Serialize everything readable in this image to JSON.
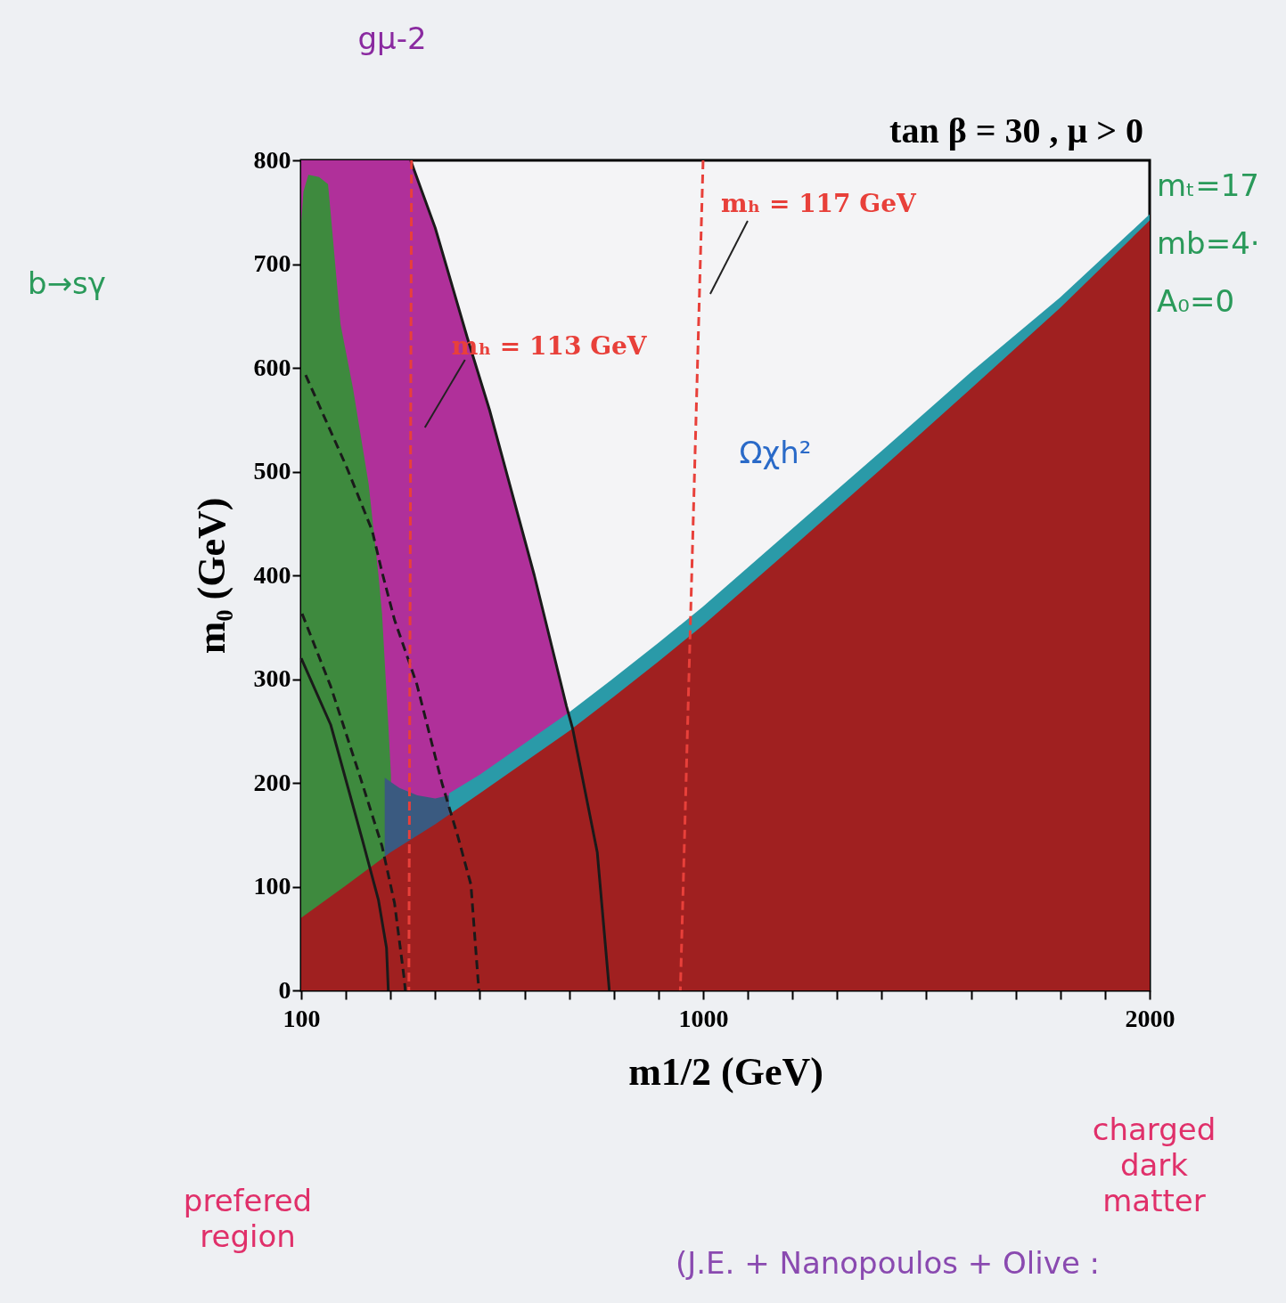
{
  "chart_data": {
    "type": "area",
    "title": "tan β = 30 ,  μ > 0",
    "xlabel": "m1/2 (GeV)",
    "ylabel": "m₀ (GeV)",
    "xlim": [
      100,
      2000
    ],
    "ylim": [
      0,
      800
    ],
    "xticks": [
      100,
      {
        "value": 200,
        "label": null
      },
      {
        "value": 300,
        "label": null
      },
      {
        "value": 400,
        "label": null
      },
      {
        "value": 500,
        "label": null
      },
      {
        "value": 600,
        "label": null
      },
      {
        "value": 700,
        "label": null
      },
      {
        "value": 800,
        "label": null
      },
      {
        "value": 900,
        "label": null
      },
      1000,
      {
        "value": 1100,
        "label": null
      },
      {
        "value": 1200,
        "label": null
      },
      {
        "value": 1300,
        "label": null
      },
      {
        "value": 1400,
        "label": null
      },
      {
        "value": 1500,
        "label": null
      },
      {
        "value": 1600,
        "label": null
      },
      {
        "value": 1700,
        "label": null
      },
      {
        "value": 1800,
        "label": null
      },
      {
        "value": 1900,
        "label": null
      },
      2000
    ],
    "yticks": [
      0,
      100,
      200,
      300,
      400,
      500,
      600,
      700,
      800
    ],
    "series": [
      {
        "color": "#b0309a",
        "x": [
          100,
          200,
          300,
          345,
          400,
          472,
          522,
          622,
          694,
          700
        ],
        "values": [
          800,
          800,
          800,
          800,
          735,
          629,
          559,
          400,
          274,
          268
        ]
      },
      {
        "color": "#3e8a3e",
        "x": [
          100,
          105,
          116,
          140,
          160,
          166,
          188,
          216,
          251,
          273,
          281,
          295,
          301
        ],
        "values": [
          740,
          770,
          786,
          784,
          777,
          749,
          642,
          580,
          488,
          400,
          363,
          256,
          207
        ]
      },
      {
        "color": "#2a9aa8",
        "x": [
          431,
          500,
          600,
          700,
          800,
          900,
          1000,
          1200,
          1400,
          1600,
          1800,
          2000
        ],
        "values": [
          190,
          208,
          238,
          268,
          301,
          335,
          370,
          445,
          520,
          596,
          668,
          748
        ]
      },
      {
        "color": "#3a5a80",
        "x": [
          287,
          320,
          360,
          400,
          431
        ],
        "values": [
          205,
          195,
          188,
          185,
          188
        ]
      },
      {
        "color": "#a02020",
        "x": [
          100,
          200,
          300,
          400,
          500,
          600,
          700,
          800,
          900,
          1000,
          1200,
          1400,
          1600,
          1800,
          2000
        ],
        "values": [
          70,
          101,
          133,
          160,
          190,
          220,
          250,
          283,
          317,
          352,
          427,
          503,
          580,
          658,
          742
        ]
      },
      {
        "type": "line",
        "color": "#1a1a1a",
        "line_style": "solid",
        "x": [
          345,
          400,
          472,
          522,
          622,
          694,
          708,
          763,
          790
        ],
        "values": [
          800,
          735,
          629,
          559,
          400,
          274,
          252,
          133,
          0
        ]
      },
      {
        "type": "line",
        "color": "#1a1a1a",
        "line_style": "dashed",
        "x": [
          110,
          202,
          259,
          281,
          309,
          359,
          415,
          451,
          480,
          496,
          498
        ],
        "values": [
          593,
          504,
          443,
          403,
          357,
          295,
          200,
          148,
          102,
          10,
          0
        ]
      },
      {
        "type": "line",
        "color": "#1a1a1a",
        "line_style": "dashed",
        "x": [
          102,
          166,
          231,
          281,
          309,
          331,
          333
        ],
        "values": [
          363,
          293,
          207,
          139,
          84,
          10,
          0
        ]
      },
      {
        "type": "line",
        "color": "#1a1a1a",
        "line_style": "solid",
        "x": [
          100,
          166,
          237,
          273,
          291,
          295
        ],
        "values": [
          320,
          256,
          145,
          87,
          41,
          0
        ]
      },
      {
        "type": "line",
        "name": "mₕ = 113 GeV",
        "color": "#e8403a",
        "line_style": "dashed",
        "x": [
          347,
          341
        ],
        "values": [
          800,
          0
        ]
      },
      {
        "type": "line",
        "name": "mₕ = 117 GeV",
        "color": "#e8403a",
        "line_style": "dashed",
        "x": [
          1000,
          949
        ],
        "values": [
          800,
          0
        ]
      }
    ],
    "annotations": [
      "gμ-2",
      "b→sγ",
      "Ωχh²",
      "prefered region",
      "charged dark matter",
      "mₜ=17",
      "mb=4·",
      "A₀=0",
      "(J.E. + Nanopoulos + Olive :"
    ]
  }
}
